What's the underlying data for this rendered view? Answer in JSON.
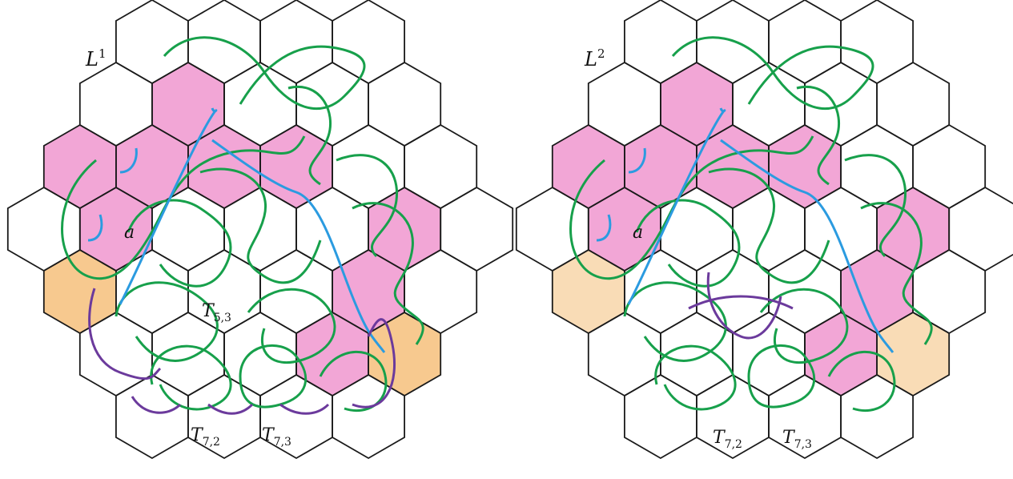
{
  "colors": {
    "hex_stroke": "#1a1a1a",
    "pink_fill": "#f2a6d6",
    "orange_fill": "#f7c98f",
    "orange_fill_light": "#f9dcb6",
    "green_curve": "#17a04b",
    "blue_curve": "#2b9be0",
    "purple_curve": "#6b3a9c"
  },
  "panels": [
    {
      "id": "left",
      "name": {
        "base": "L",
        "sup": "1"
      },
      "curve_label": "a",
      "tiles": [
        {
          "base": "T",
          "sub": "5,3"
        },
        {
          "base": "T",
          "sub": "7,2"
        },
        {
          "base": "T",
          "sub": "7,3"
        }
      ]
    },
    {
      "id": "right",
      "name": {
        "base": "L",
        "sup": "2"
      },
      "curve_label": "a",
      "tiles": [
        {
          "base": "T",
          "sub": "7,2"
        },
        {
          "base": "T",
          "sub": "7,3"
        }
      ]
    }
  ]
}
